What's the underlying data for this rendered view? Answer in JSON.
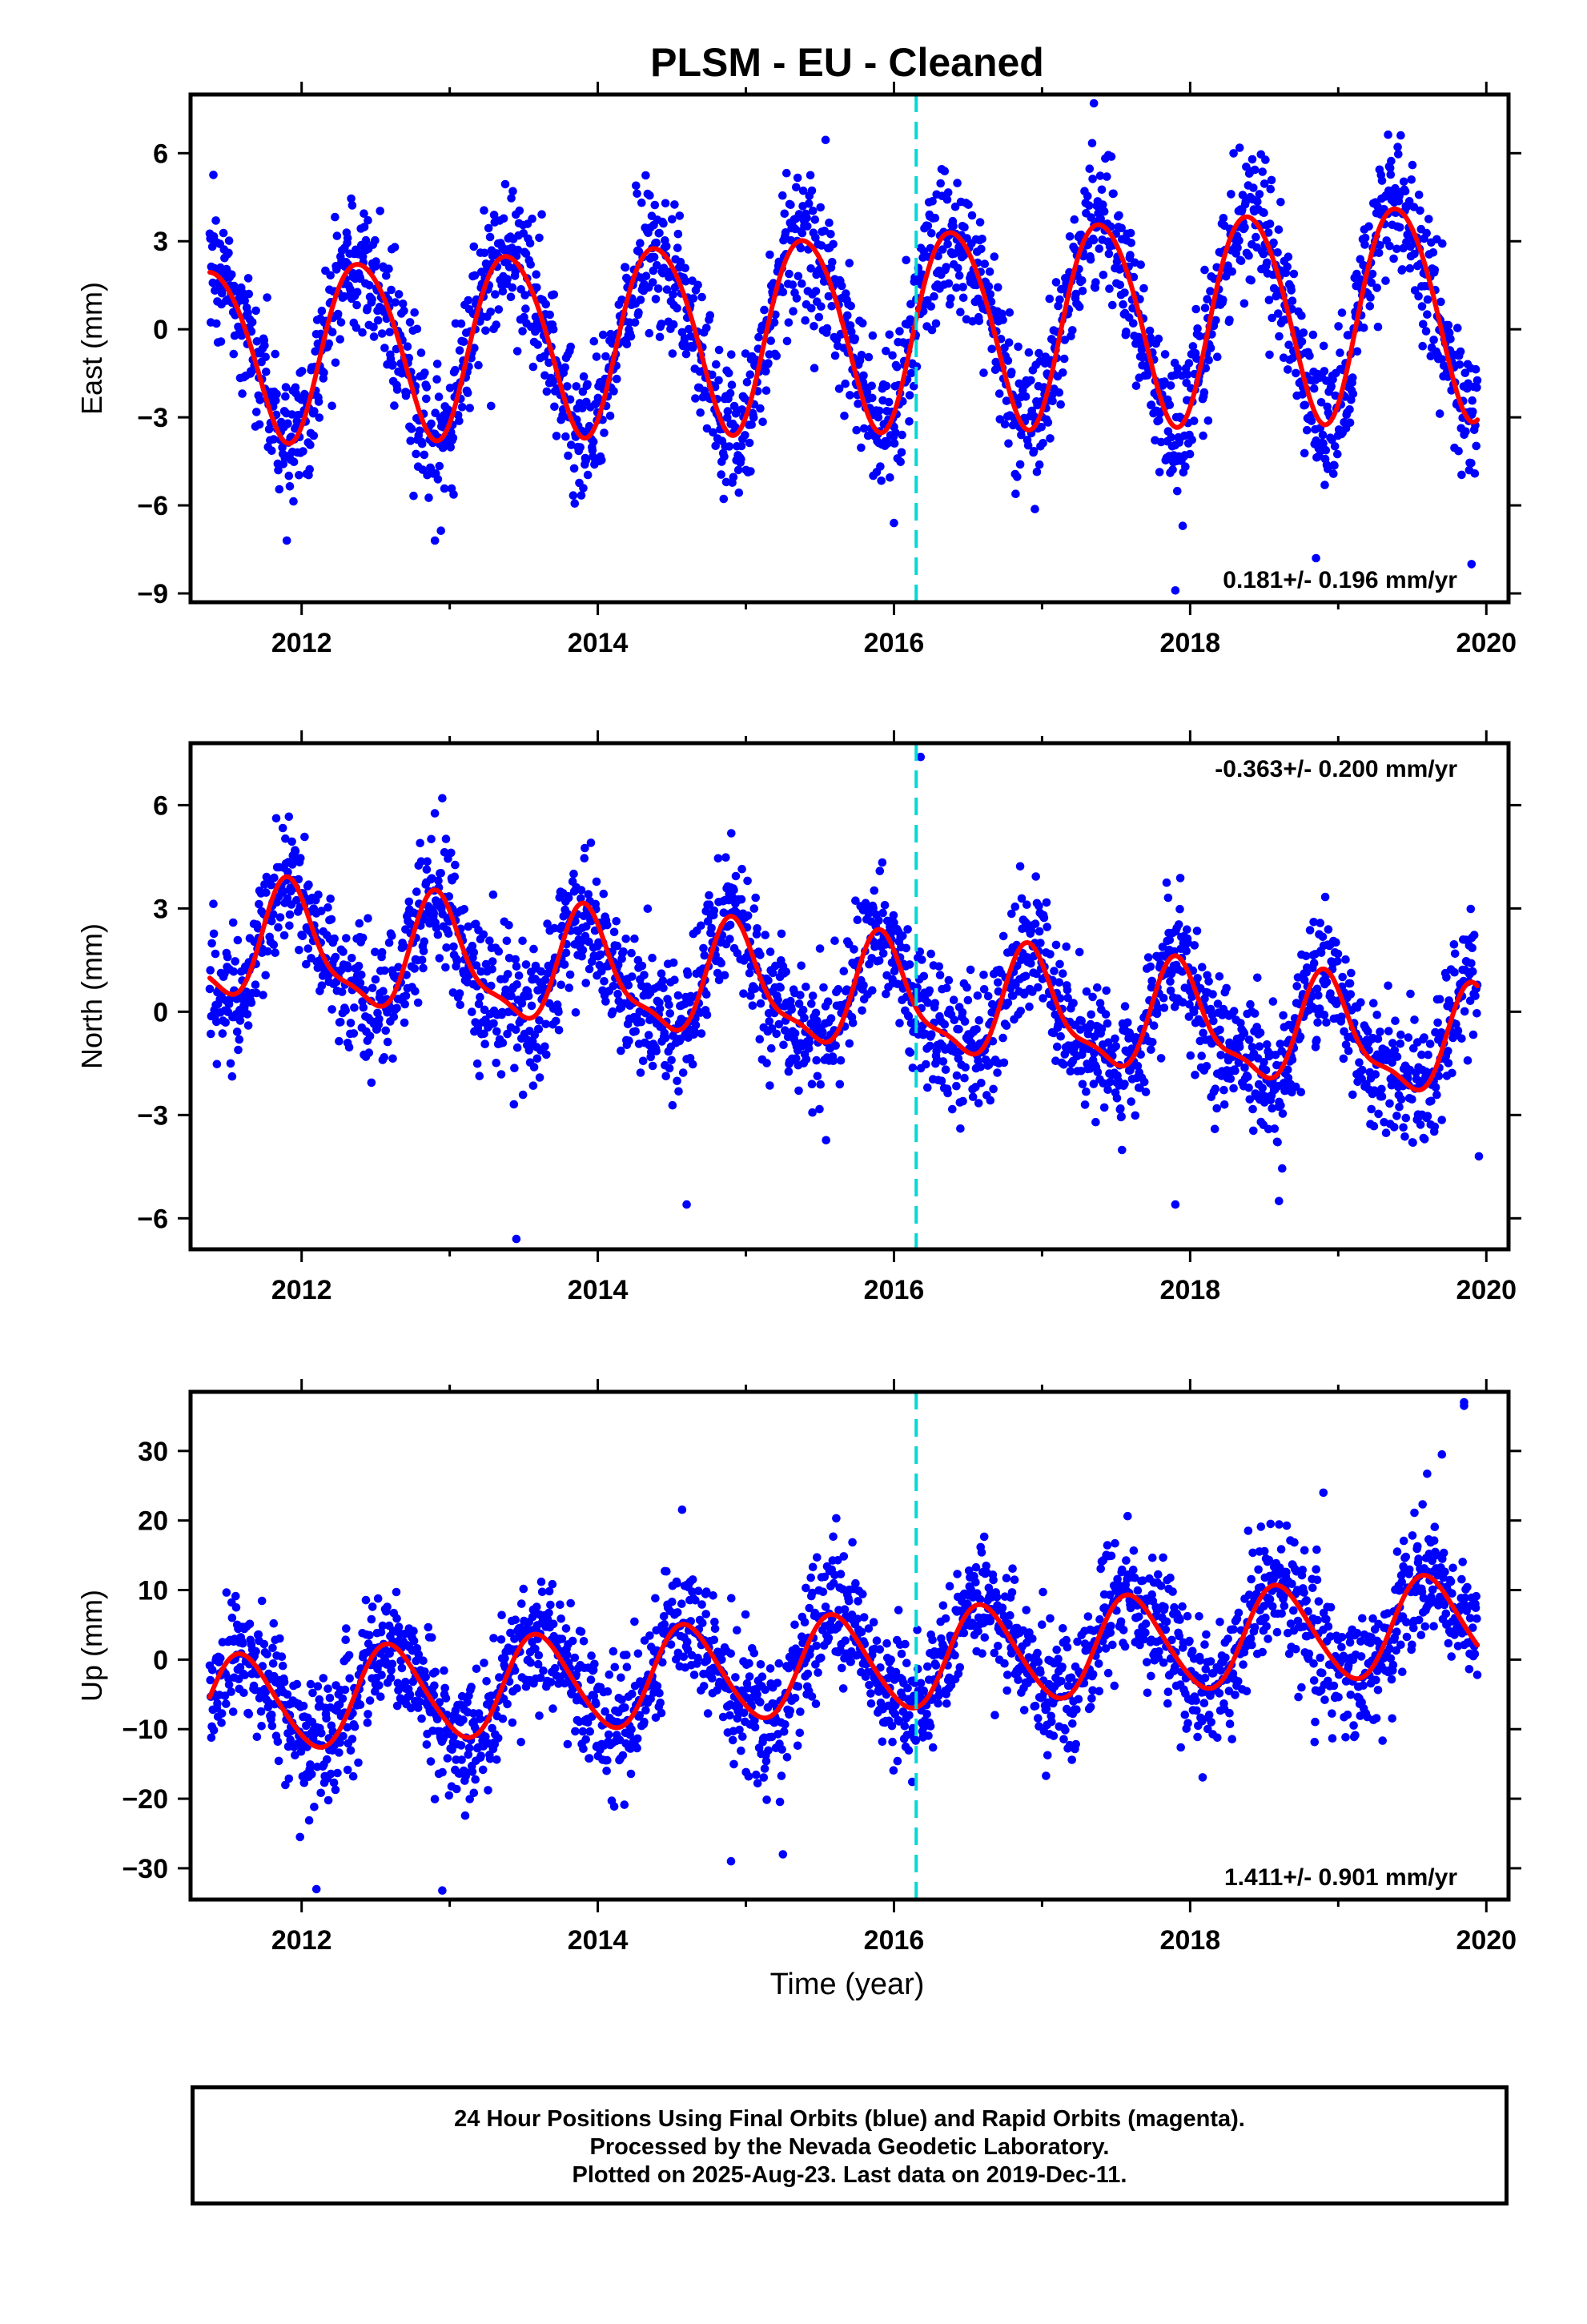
{
  "title": "PLSM  - EU - Cleaned",
  "xlabel": "Time (year)",
  "footer": {
    "line1": "24 Hour Positions Using Final Orbits (blue) and Rapid Orbits (magenta).",
    "line2": "Processed by the Nevada Geodetic Laboratory.",
    "line3": "Plotted on 2025-Aug-23. Last data on 2019-Dec-11."
  },
  "colors": {
    "points": "#0000ff",
    "fit": "#ff0000",
    "event_line": "#00d8d8",
    "frame": "#000000"
  },
  "chart_data": [
    {
      "type": "scatter",
      "name": "East",
      "ylabel": "East (mm)",
      "xlim": [
        2011.25,
        2020.15
      ],
      "ylim": [
        -9.3,
        8.0
      ],
      "xticks": [
        2012,
        2014,
        2016,
        2018,
        2020
      ],
      "yticks": [
        -9,
        -6,
        -3,
        0,
        3,
        6
      ],
      "data_start": 2011.38,
      "data_end": 2019.94,
      "event_line_x": 2016.15,
      "trend_annotation": "0.181+/- 0.196 mm/yr",
      "annotation_position": "bottom-right",
      "fit": {
        "offset": 0.0,
        "rate": 0.181,
        "t0": 2015.6,
        "annual_amp": 3.3,
        "annual_amp_change_per_yr": 0.09,
        "annual_peak": 2015.4,
        "semi_amp": 0.3,
        "semi_peak": 2015.2
      },
      "scatter_sigma": 1.2,
      "outliers": [
        [
          2011.9,
          -7.2
        ],
        [
          2012.9,
          -7.2
        ],
        [
          2016.0,
          -6.6
        ],
        [
          2017.35,
          7.7
        ],
        [
          2017.95,
          -6.7
        ],
        [
          2018.85,
          -7.8
        ],
        [
          2019.9,
          -8.0
        ],
        [
          2017.9,
          -8.9
        ]
      ]
    },
    {
      "type": "scatter",
      "name": "North",
      "ylabel": "North (mm)",
      "xlim": [
        2011.25,
        2020.15
      ],
      "ylim": [
        -6.9,
        7.8
      ],
      "xticks": [
        2012,
        2014,
        2016,
        2018,
        2020
      ],
      "yticks": [
        -6,
        -3,
        0,
        3,
        6
      ],
      "data_start": 2011.38,
      "data_end": 2019.94,
      "event_line_x": 2016.15,
      "trend_annotation": "-0.363+/- 0.200 mm/yr",
      "annotation_position": "top-right",
      "fit": {
        "offset": 0.5,
        "rate": -0.363,
        "t0": 2015.6,
        "annual_amp": 1.55,
        "annual_amp_change_per_yr": -0.02,
        "annual_peak": 2015.93,
        "semi_amp": 0.5,
        "semi_peak": 2015.88
      },
      "scatter_sigma": 0.95,
      "outliers": [
        [
          2016.18,
          7.4
        ],
        [
          2013.45,
          -6.6
        ],
        [
          2014.6,
          -5.6
        ],
        [
          2017.9,
          -5.6
        ],
        [
          2018.6,
          -5.5
        ],
        [
          2012.95,
          6.2
        ],
        [
          2019.95,
          -4.2
        ]
      ]
    },
    {
      "type": "scatter",
      "name": "Up",
      "ylabel": "Up (mm)",
      "xlim": [
        2011.25,
        2020.15
      ],
      "ylim": [
        -34.5,
        38.5
      ],
      "xticks": [
        2012,
        2014,
        2016,
        2018,
        2020
      ],
      "yticks": [
        -30,
        -20,
        -10,
        0,
        10,
        20,
        30
      ],
      "data_start": 2011.38,
      "data_end": 2019.94,
      "event_line_x": 2016.15,
      "trend_annotation": "1.411+/- 0.901 mm/yr",
      "annotation_position": "bottom-right",
      "fit": {
        "offset": -0.8,
        "rate": 1.411,
        "t0": 2015.6,
        "annual_amp": 7.0,
        "annual_amp_change_per_yr": 0.0,
        "annual_peak": 2015.6,
        "semi_amp": 0.7,
        "semi_peak": 2015.5
      },
      "scatter_sigma": 4.5,
      "outliers": [
        [
          2019.85,
          37.0
        ],
        [
          2019.85,
          36.5
        ],
        [
          2012.1,
          -33.0
        ],
        [
          2012.95,
          -33.2
        ],
        [
          2014.9,
          -29.0
        ],
        [
          2015.25,
          -28.0
        ],
        [
          2019.7,
          29.5
        ],
        [
          2018.9,
          24.0
        ]
      ]
    }
  ]
}
